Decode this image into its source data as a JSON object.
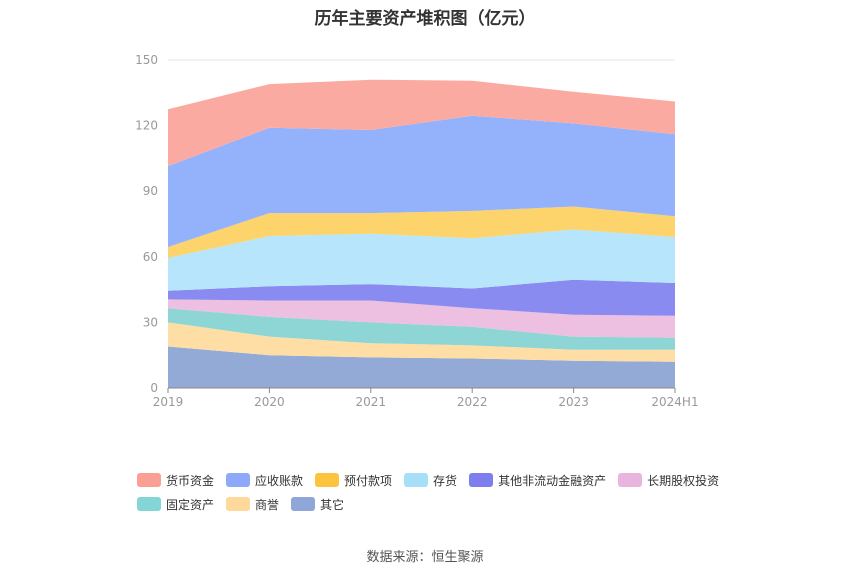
{
  "chart_data": {
    "type": "area",
    "stacked": true,
    "title": "历年主要资产堆积图（亿元）",
    "x": [
      "2019",
      "2020",
      "2021",
      "2022",
      "2023",
      "2024H1"
    ],
    "yticks": [
      0,
      30,
      60,
      90,
      120,
      150
    ],
    "ylim": [
      0,
      150
    ],
    "grid": true,
    "legend_position": "bottom",
    "series": [
      {
        "name": "其它",
        "color": "#93aad6",
        "values": [
          19,
          15,
          14,
          13.5,
          12.5,
          12
        ]
      },
      {
        "name": "商誉",
        "color": "#ffdea6",
        "values": [
          11,
          8.5,
          6.5,
          6,
          5,
          5.5
        ]
      },
      {
        "name": "固定资产",
        "color": "#8ed6d6",
        "values": [
          6.5,
          9,
          9.5,
          8.5,
          6,
          5.5
        ]
      },
      {
        "name": "长期股权投资",
        "color": "#edbfe0",
        "values": [
          4,
          7.5,
          10,
          8.5,
          10,
          10
        ]
      },
      {
        "name": "其他非流动金融资产",
        "color": "#8a8bf0",
        "values": [
          4,
          6.5,
          7.5,
          9,
          16,
          15
        ]
      },
      {
        "name": "存货",
        "color": "#b7e5fb",
        "values": [
          15,
          23,
          23,
          23,
          23,
          21
        ]
      },
      {
        "name": "预付款项",
        "color": "#fdd36b",
        "values": [
          5,
          10.5,
          9.5,
          12.5,
          10.5,
          9.5
        ]
      },
      {
        "name": "应收账款",
        "color": "#94b1fb",
        "values": [
          37,
          39,
          38,
          43.5,
          38,
          37.5
        ]
      },
      {
        "name": "货币资金",
        "color": "#fbaaa2",
        "values": [
          26,
          20,
          23,
          16,
          14.5,
          15
        ]
      }
    ]
  },
  "legend_order": [
    {
      "name": "货币资金",
      "color": "#fb9f95"
    },
    {
      "name": "应收账款",
      "color": "#8ea9f9"
    },
    {
      "name": "预付款项",
      "color": "#fcc43e"
    },
    {
      "name": "存货",
      "color": "#a7dff8"
    },
    {
      "name": "其他非流动金融资产",
      "color": "#7e7eef"
    },
    {
      "name": "长期股权投资",
      "color": "#eab4dc"
    },
    {
      "name": "固定资产",
      "color": "#84d6d6"
    },
    {
      "name": "商誉",
      "color": "#ffd99c"
    },
    {
      "name": "其它",
      "color": "#8ea6d8"
    }
  ],
  "source_text": "数据来源：恒生聚源"
}
